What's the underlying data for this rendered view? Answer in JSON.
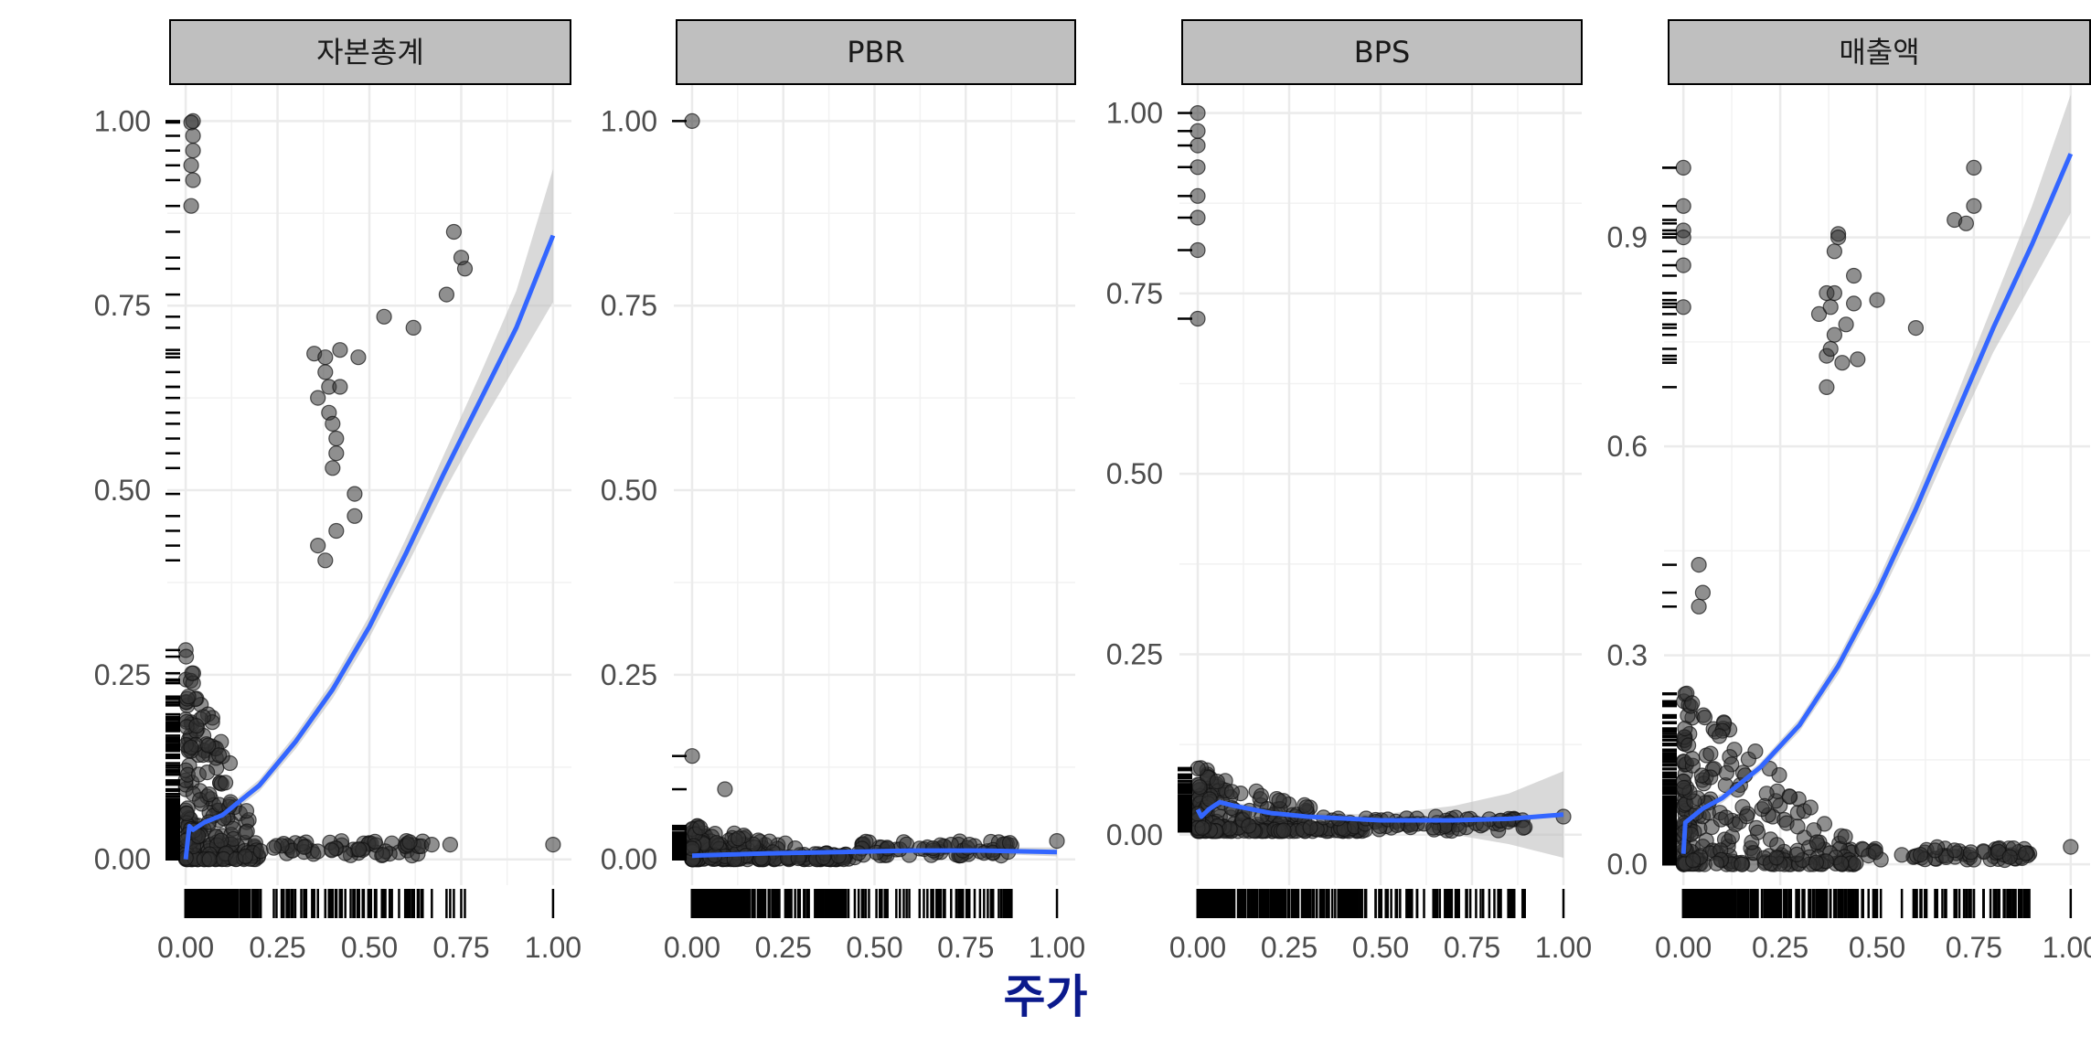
{
  "chart_data": {
    "type": "scatter",
    "xlabel": "주가",
    "x_ticks": [
      "0.00",
      "0.25",
      "0.50",
      "0.75",
      "1.00"
    ],
    "colors": {
      "points": "#333333",
      "smooth_line": "#3366ff",
      "confidence_band": "#bfbfbf",
      "strip_fill": "#bfbfbf",
      "xlabel": "#0b1a8c"
    },
    "panels": [
      {
        "title": "자본총계",
        "xlim": [
          -0.05,
          1.05
        ],
        "ylim": [
          -0.035,
          1.05
        ],
        "y_ticks": [
          0,
          0.25,
          0.5,
          0.75,
          1.0
        ],
        "y_tick_labels": [
          "0.00",
          "0.25",
          "0.50",
          "0.75",
          "1.00"
        ],
        "outlier_points": [
          [
            0.02,
            1.0
          ],
          [
            0.015,
            0.998
          ],
          [
            0.02,
            0.98
          ],
          [
            0.02,
            0.96
          ],
          [
            0.015,
            0.94
          ],
          [
            0.02,
            0.92
          ],
          [
            0.015,
            0.885
          ],
          [
            0.35,
            0.685
          ],
          [
            0.38,
            0.68
          ],
          [
            0.38,
            0.66
          ],
          [
            0.42,
            0.69
          ],
          [
            0.47,
            0.68
          ],
          [
            0.39,
            0.64
          ],
          [
            0.42,
            0.64
          ],
          [
            0.36,
            0.625
          ],
          [
            0.39,
            0.605
          ],
          [
            0.4,
            0.59
          ],
          [
            0.41,
            0.57
          ],
          [
            0.41,
            0.55
          ],
          [
            0.4,
            0.53
          ],
          [
            0.46,
            0.495
          ],
          [
            0.46,
            0.465
          ],
          [
            0.41,
            0.445
          ],
          [
            0.36,
            0.425
          ],
          [
            0.38,
            0.405
          ],
          [
            0.54,
            0.735
          ],
          [
            0.62,
            0.72
          ],
          [
            0.71,
            0.765
          ],
          [
            0.73,
            0.85
          ],
          [
            0.75,
            0.815
          ],
          [
            0.76,
            0.8
          ],
          [
            1.0,
            0.02
          ],
          [
            0.67,
            0.02
          ],
          [
            0.72,
            0.02
          ]
        ],
        "cluster_x_max": 0.2,
        "cluster_y_max": 0.29,
        "smooth": [
          [
            0.0,
            0.0
          ],
          [
            0.01,
            0.045
          ],
          [
            0.02,
            0.04
          ],
          [
            0.05,
            0.05
          ],
          [
            0.1,
            0.06
          ],
          [
            0.2,
            0.1
          ],
          [
            0.3,
            0.16
          ],
          [
            0.4,
            0.23
          ],
          [
            0.5,
            0.315
          ],
          [
            0.6,
            0.415
          ],
          [
            0.7,
            0.52
          ],
          [
            0.8,
            0.62
          ],
          [
            0.9,
            0.72
          ],
          [
            1.0,
            0.845
          ]
        ],
        "band_halfwidth": [
          0.01,
          0.008,
          0.006,
          0.006,
          0.006,
          0.008,
          0.01,
          0.012,
          0.015,
          0.02,
          0.025,
          0.035,
          0.05,
          0.09
        ]
      },
      {
        "title": "PBR",
        "xlim": [
          -0.05,
          1.05
        ],
        "ylim": [
          -0.035,
          1.05
        ],
        "y_ticks": [
          0,
          0.25,
          0.5,
          0.75,
          1.0
        ],
        "y_tick_labels": [
          "0.00",
          "0.25",
          "0.50",
          "0.75",
          "1.00"
        ],
        "outlier_points": [
          [
            0.0,
            1.0
          ],
          [
            0.0,
            0.14
          ],
          [
            0.09,
            0.095
          ],
          [
            1.0,
            0.025
          ],
          [
            0.71,
            0.02
          ],
          [
            0.76,
            0.02
          ],
          [
            0.66,
            0.015
          ]
        ],
        "cluster_x_max": 0.45,
        "cluster_y_max": 0.05,
        "smooth": [
          [
            0.0,
            0.005
          ],
          [
            0.2,
            0.008
          ],
          [
            0.4,
            0.01
          ],
          [
            0.6,
            0.012
          ],
          [
            0.8,
            0.012
          ],
          [
            1.0,
            0.01
          ]
        ],
        "band_halfwidth": [
          0.003,
          0.002,
          0.002,
          0.003,
          0.004,
          0.006
        ]
      },
      {
        "title": "BPS",
        "xlim": [
          -0.05,
          1.05
        ],
        "ylim": [
          -0.07,
          1.04
        ],
        "y_ticks": [
          0,
          0.25,
          0.5,
          0.75,
          1.0
        ],
        "y_tick_labels": [
          "0.00",
          "0.25",
          "0.50",
          "0.75",
          "1.00"
        ],
        "outlier_points": [
          [
            0.0,
            1.0
          ],
          [
            0.0,
            0.975
          ],
          [
            0.0,
            0.955
          ],
          [
            0.0,
            0.925
          ],
          [
            0.0,
            0.885
          ],
          [
            0.0,
            0.855
          ],
          [
            0.0,
            0.81
          ],
          [
            0.0,
            0.715
          ],
          [
            1.0,
            0.025
          ]
        ],
        "cluster_x_max": 0.45,
        "cluster_y_max": 0.09,
        "smooth": [
          [
            0.0,
            0.035
          ],
          [
            0.01,
            0.025
          ],
          [
            0.03,
            0.035
          ],
          [
            0.06,
            0.045
          ],
          [
            0.1,
            0.04
          ],
          [
            0.2,
            0.03
          ],
          [
            0.3,
            0.025
          ],
          [
            0.5,
            0.02
          ],
          [
            0.7,
            0.02
          ],
          [
            0.85,
            0.022
          ],
          [
            1.0,
            0.028
          ]
        ],
        "band_halfwidth": [
          0.01,
          0.008,
          0.007,
          0.006,
          0.005,
          0.005,
          0.005,
          0.008,
          0.02,
          0.035,
          0.06
        ]
      },
      {
        "title": "매출액",
        "xlim": [
          -0.05,
          1.05
        ],
        "ylim": [
          -0.03,
          1.12
        ],
        "y_ticks": [
          0,
          0.3,
          0.6,
          0.9
        ],
        "y_tick_labels": [
          "0.0",
          "0.3",
          "0.6",
          "0.9"
        ],
        "outlier_points": [
          [
            0.0,
            1.0
          ],
          [
            0.0,
            0.945
          ],
          [
            0.0,
            0.91
          ],
          [
            0.0,
            0.9
          ],
          [
            0.0,
            0.86
          ],
          [
            0.0,
            0.8
          ],
          [
            0.35,
            0.79
          ],
          [
            0.37,
            0.82
          ],
          [
            0.38,
            0.8
          ],
          [
            0.39,
            0.82
          ],
          [
            0.39,
            0.88
          ],
          [
            0.4,
            0.905
          ],
          [
            0.4,
            0.9
          ],
          [
            0.42,
            0.775
          ],
          [
            0.44,
            0.845
          ],
          [
            0.44,
            0.805
          ],
          [
            0.37,
            0.73
          ],
          [
            0.38,
            0.74
          ],
          [
            0.39,
            0.76
          ],
          [
            0.41,
            0.72
          ],
          [
            0.45,
            0.725
          ],
          [
            0.37,
            0.685
          ],
          [
            0.5,
            0.81
          ],
          [
            0.6,
            0.77
          ],
          [
            0.7,
            0.925
          ],
          [
            0.73,
            0.92
          ],
          [
            0.75,
            0.945
          ],
          [
            0.75,
            1.0
          ],
          [
            1.0,
            0.025
          ],
          [
            0.65,
            0.02
          ],
          [
            0.7,
            0.02
          ],
          [
            0.04,
            0.43
          ],
          [
            0.05,
            0.39
          ],
          [
            0.04,
            0.37
          ]
        ],
        "cluster_x_max": 0.45,
        "cluster_y_max": 0.26,
        "smooth": [
          [
            0.0,
            0.015
          ],
          [
            0.005,
            0.06
          ],
          [
            0.05,
            0.08
          ],
          [
            0.1,
            0.095
          ],
          [
            0.2,
            0.14
          ],
          [
            0.3,
            0.2
          ],
          [
            0.4,
            0.285
          ],
          [
            0.5,
            0.39
          ],
          [
            0.6,
            0.51
          ],
          [
            0.7,
            0.64
          ],
          [
            0.8,
            0.77
          ],
          [
            0.9,
            0.89
          ],
          [
            1.0,
            1.02
          ]
        ],
        "band_halfwidth": [
          0.012,
          0.01,
          0.008,
          0.007,
          0.007,
          0.009,
          0.012,
          0.015,
          0.02,
          0.025,
          0.035,
          0.055,
          0.085
        ]
      }
    ]
  }
}
